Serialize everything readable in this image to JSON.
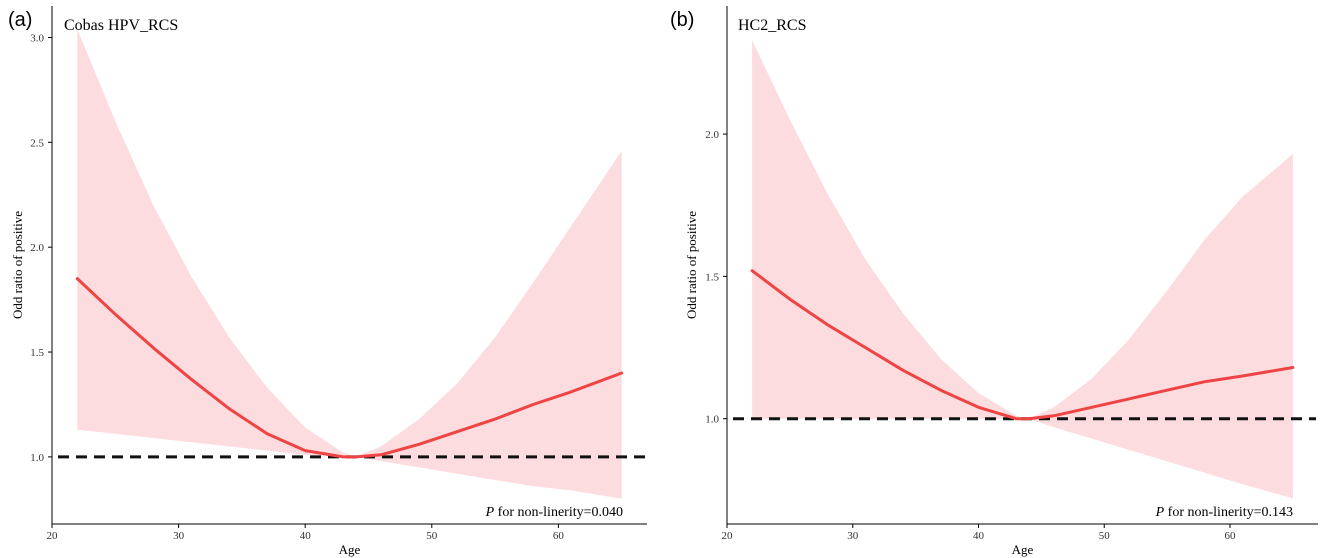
{
  "chart_data": [
    {
      "type": "line",
      "panel_label": "(a)",
      "title": "Cobas HPV_RCS",
      "xlabel": "Age",
      "ylabel": "Odd ratio of  positive",
      "xlim": [
        20,
        67
      ],
      "ylim": [
        0.68,
        3.15
      ],
      "xticks": [
        20,
        30,
        40,
        50,
        60
      ],
      "yticks": [
        1.0,
        1.5,
        2.0,
        2.5,
        3.0
      ],
      "ytick_labels": [
        "1.0",
        "1.5",
        "2.0",
        "2.5",
        "3.0"
      ],
      "reference_line": 1.0,
      "annotation_p": "P",
      "annotation_text": " for non-linerity=0.040",
      "series": [
        {
          "x": [
            22,
            25,
            28,
            31,
            34,
            37,
            40,
            43,
            44,
            46,
            49,
            52,
            55,
            58,
            61,
            65
          ],
          "y": [
            1.85,
            1.68,
            1.52,
            1.37,
            1.23,
            1.11,
            1.03,
            1.0,
            1.0,
            1.01,
            1.06,
            1.12,
            1.18,
            1.25,
            1.31,
            1.4
          ],
          "lower": [
            1.13,
            1.11,
            1.09,
            1.07,
            1.05,
            1.03,
            1.01,
            1.0,
            1.0,
            0.98,
            0.95,
            0.92,
            0.89,
            0.86,
            0.84,
            0.8
          ],
          "upper": [
            3.04,
            2.6,
            2.2,
            1.86,
            1.57,
            1.33,
            1.14,
            1.02,
            1.0,
            1.05,
            1.18,
            1.35,
            1.57,
            1.83,
            2.1,
            2.46
          ]
        }
      ]
    },
    {
      "type": "line",
      "panel_label": "(b)",
      "title": "HC2_RCS",
      "xlabel": "Age",
      "ylabel": "Odd ratio of  positive",
      "xlim": [
        20,
        67
      ],
      "ylim": [
        0.63,
        2.45
      ],
      "xticks": [
        20,
        30,
        40,
        50,
        60
      ],
      "yticks": [
        1.0,
        1.5,
        2.0
      ],
      "ytick_labels": [
        "1.0",
        "1.5",
        "2.0"
      ],
      "reference_line": 1.0,
      "annotation_p": "P",
      "annotation_text": " for non-linerity=0.143",
      "series": [
        {
          "x": [
            22,
            25,
            28,
            31,
            34,
            37,
            40,
            43,
            44,
            46,
            49,
            52,
            55,
            58,
            61,
            65
          ],
          "y": [
            1.52,
            1.42,
            1.33,
            1.25,
            1.17,
            1.1,
            1.04,
            1.0,
            1.0,
            1.01,
            1.04,
            1.07,
            1.1,
            1.13,
            1.15,
            1.18
          ],
          "lower": [
            1.0,
            1.0,
            1.0,
            1.0,
            1.0,
            1.0,
            1.0,
            1.0,
            1.0,
            0.97,
            0.93,
            0.89,
            0.85,
            0.81,
            0.77,
            0.72
          ],
          "upper": [
            2.33,
            2.05,
            1.79,
            1.56,
            1.37,
            1.21,
            1.09,
            1.01,
            1.0,
            1.04,
            1.14,
            1.28,
            1.45,
            1.63,
            1.78,
            1.93
          ]
        }
      ]
    }
  ]
}
